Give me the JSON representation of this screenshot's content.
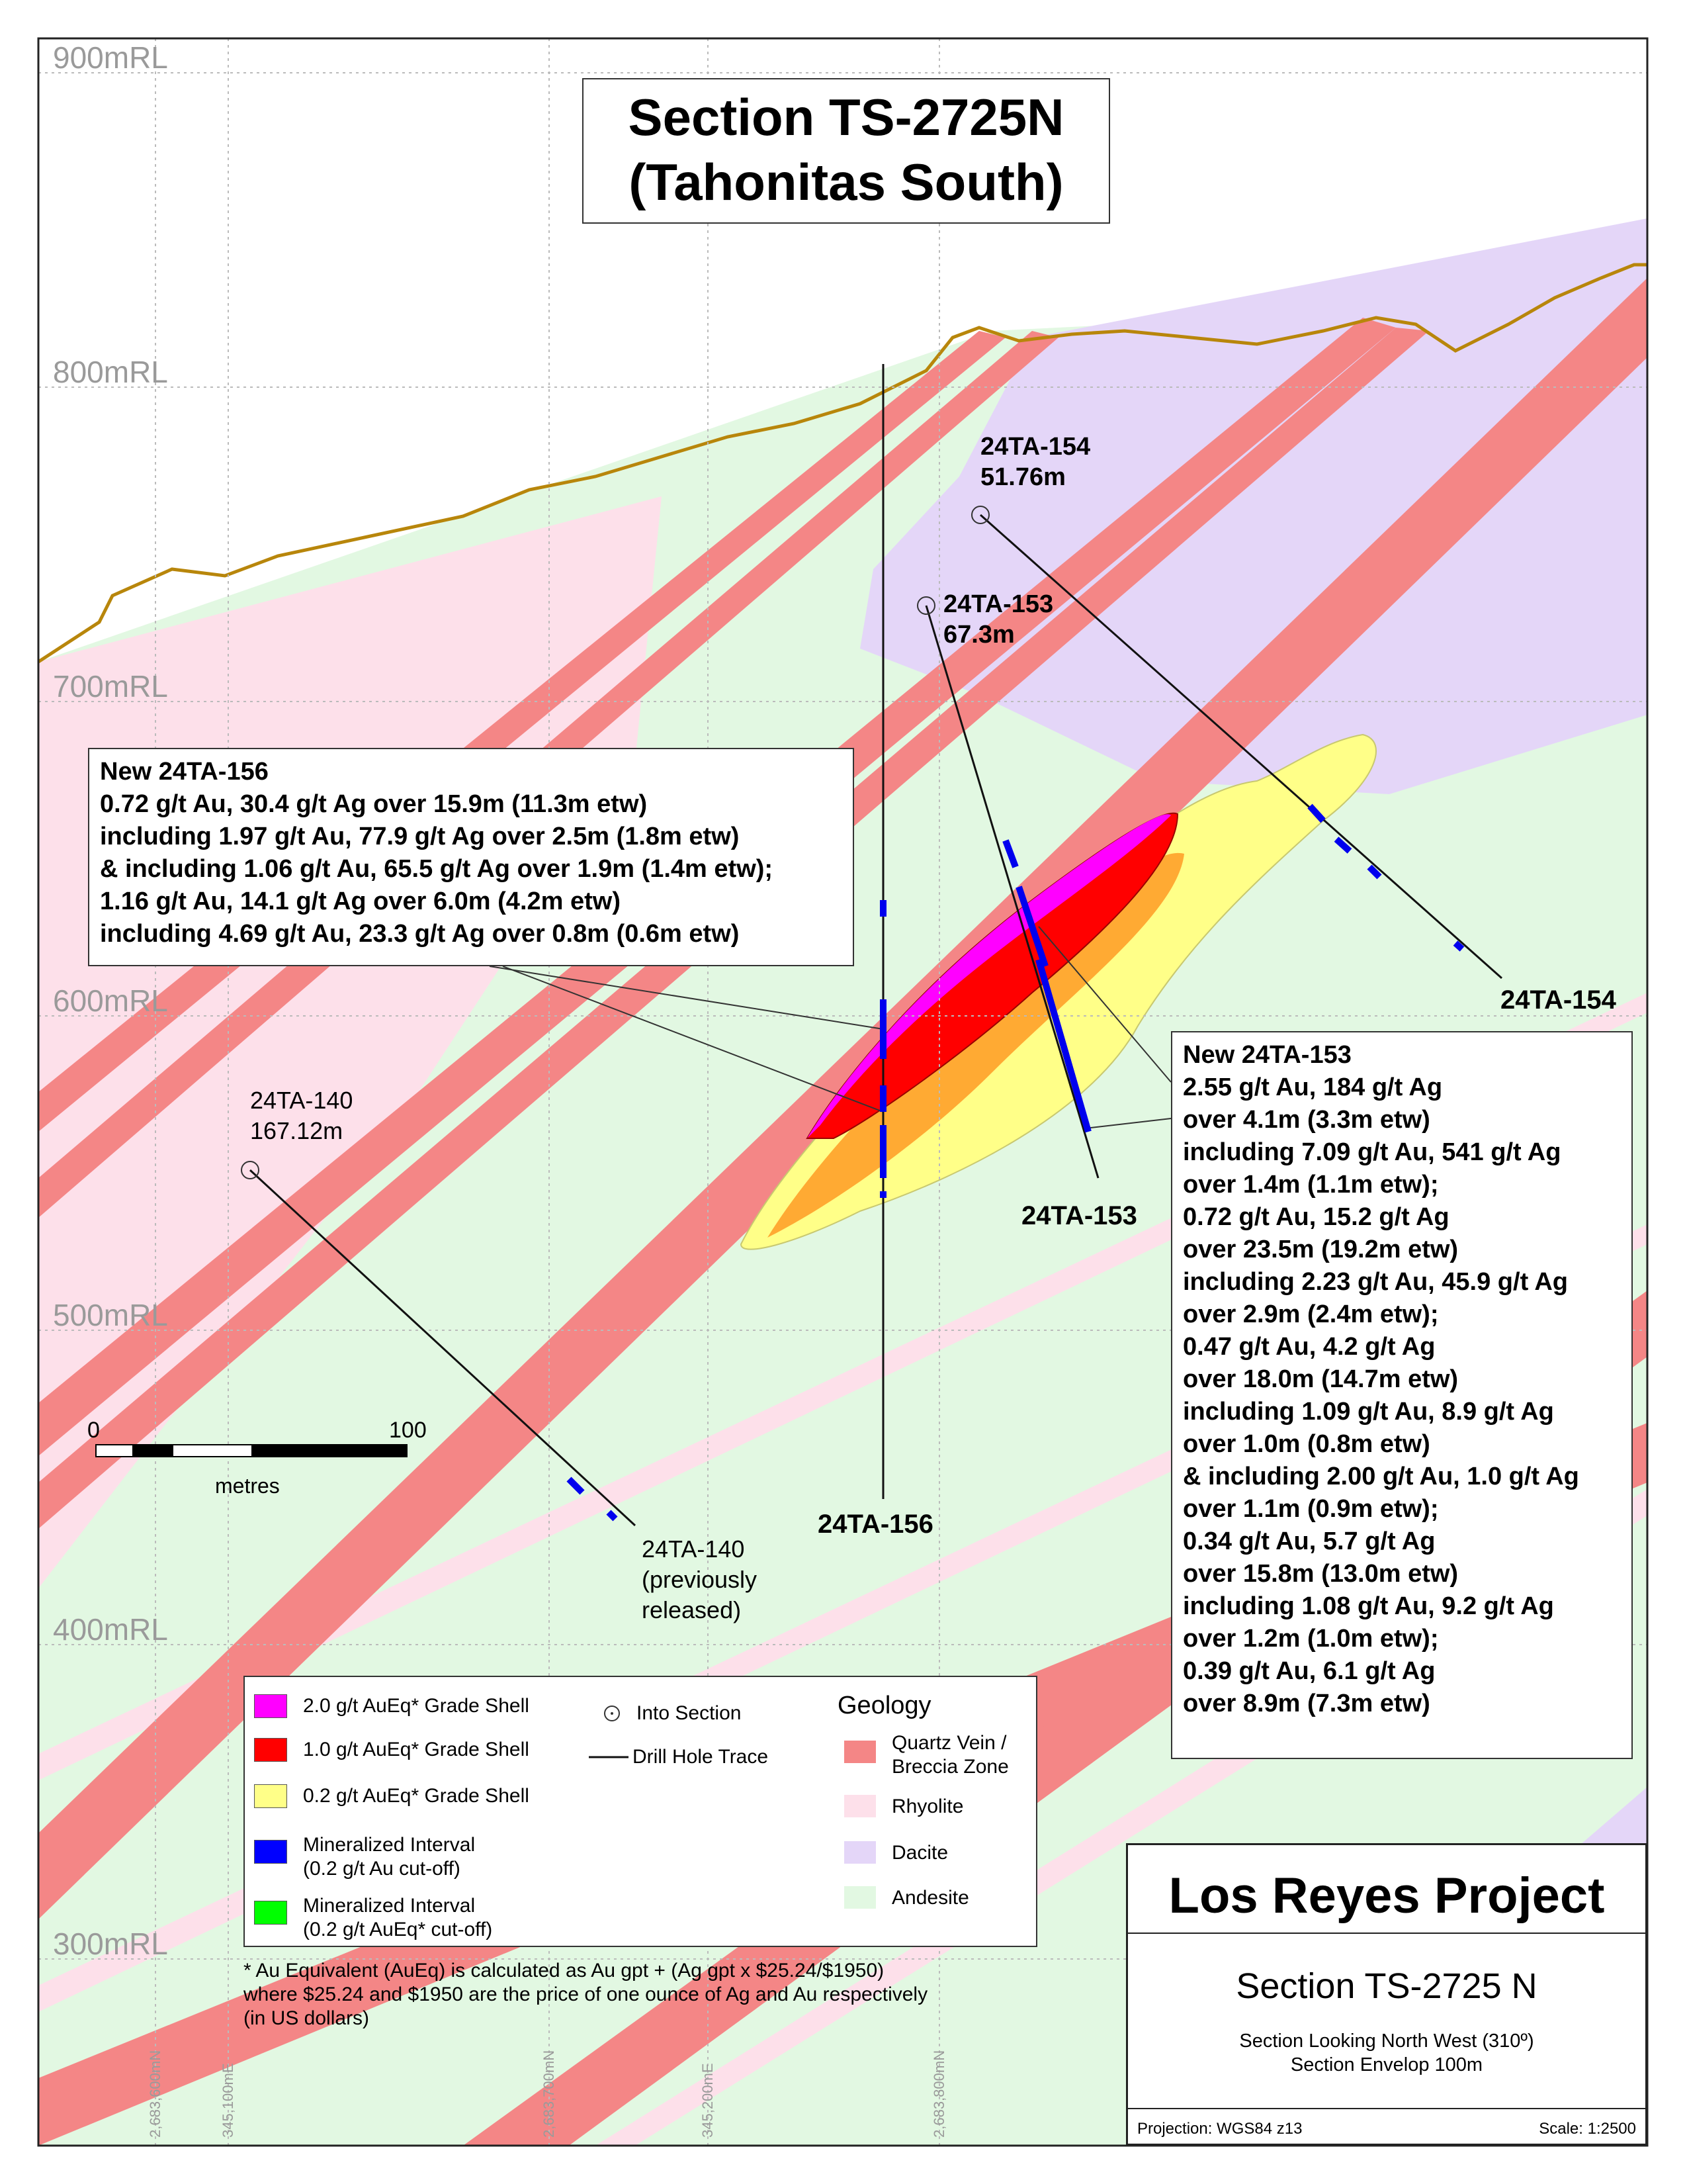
{
  "title": {
    "line1": "Section TS-2725N",
    "line2": "(Tahonitas South)"
  },
  "elevation_labels": [
    "900mRL",
    "800mRL",
    "700mRL",
    "600mRL",
    "500mRL",
    "400mRL",
    "300mRL"
  ],
  "grid_labels": [
    "2,683,600mN",
    "345,100mE",
    "2,683,700mN",
    "345,200mE",
    "2,683,800mN"
  ],
  "scale_bar": {
    "start": "0",
    "end": "100",
    "unit": "metres"
  },
  "annotations": {
    "hole_156": {
      "lines": [
        "New 24TA-156",
        "0.72 g/t Au, 30.4 g/t Ag over 15.9m (11.3m etw)",
        "including 1.97 g/t Au, 77.9 g/t Ag over 2.5m (1.8m etw)",
        "& including 1.06 g/t Au, 65.5 g/t Ag over 1.9m (1.4m etw);",
        "1.16 g/t Au, 14.1 g/t Ag over 6.0m (4.2m etw)",
        "including 4.69 g/t Au, 23.3 g/t Ag over 0.8m (0.6m etw)"
      ]
    },
    "hole_153": {
      "lines": [
        "New 24TA-153",
        "2.55 g/t Au, 184 g/t Ag",
        "over 4.1m (3.3m etw)",
        "including 7.09 g/t Au, 541 g/t Ag",
        "over 1.4m (1.1m etw);",
        "0.72 g/t Au, 15.2 g/t Ag",
        "over 23.5m (19.2m etw)",
        "including 2.23 g/t Au, 45.9 g/t Ag",
        "over 2.9m (2.4m etw);",
        "0.47 g/t Au, 4.2 g/t Ag",
        "over 18.0m (14.7m etw)",
        "including 1.09 g/t Au, 8.9 g/t Ag",
        "over 1.0m (0.8m etw)",
        "& including 2.00 g/t Au, 1.0 g/t Ag",
        "over 1.1m (0.9m etw);",
        "0.34 g/t Au, 5.7 g/t Ag",
        "over 15.8m (13.0m etw)",
        "including 1.08 g/t Au, 9.2 g/t Ag",
        "over 1.2m (1.0m etw);",
        "0.39 g/t Au, 6.1 g/t Ag",
        "over 8.9m (7.3m etw)"
      ]
    }
  },
  "holes": {
    "h154_top": {
      "name": "24TA-154",
      "depth": "51.76m"
    },
    "h154_end": "24TA-154",
    "h153_top": {
      "name": "24TA-153",
      "depth": "67.3m"
    },
    "h153_end": "24TA-153",
    "h140_top": {
      "name": "24TA-140",
      "depth": "167.12m"
    },
    "h140_end": {
      "name": "24TA-140",
      "note1": "(previously",
      "note2": "released)"
    },
    "h156_end": "24TA-156"
  },
  "legend": {
    "items": [
      {
        "label": "2.0 g/t AuEq* Grade Shell",
        "color": "#ff00ff"
      },
      {
        "label": "1.0 g/t AuEq* Grade Shell",
        "color": "#ff0000"
      },
      {
        "label": "0.2 g/t AuEq* Grade Shell",
        "color": "#ffff88"
      },
      {
        "label": "Mineralized Interval",
        "label2": "(0.2 g/t Au cut-off)",
        "color": "#0000ff"
      },
      {
        "label": "Mineralized Interval",
        "label2": "(0.2 g/t AuEq* cut-off)",
        "color": "#00ff00"
      }
    ],
    "symbols": {
      "into_section": "Into Section",
      "drill_trace": "Drill Hole Trace"
    },
    "geology": {
      "title": "Geology",
      "items": [
        {
          "label": "Quartz Vein /",
          "label2": "Breccia Zone",
          "color": "#f48686"
        },
        {
          "label": "Rhyolite",
          "color": "#fde0ea"
        },
        {
          "label": "Dacite",
          "color": "#e4d6f8"
        },
        {
          "label": "Andesite",
          "color": "#e2f8e2"
        }
      ]
    }
  },
  "footnote": [
    "* Au Equivalent (AuEq) is calculated as Au gpt + (Ag gpt x $25.24/$1950)",
    "where $25.24 and $1950 are the price of one ounce of Ag and Au respectively",
    "(in US dollars)"
  ],
  "project": {
    "name": "Los Reyes Project",
    "section": "Section TS-2725 N",
    "looking": "Section Looking North West (310º)",
    "envelope": "Section Envelop 100m",
    "projection": "Projection: WGS84 z13",
    "scale": "Scale: 1:2500"
  }
}
